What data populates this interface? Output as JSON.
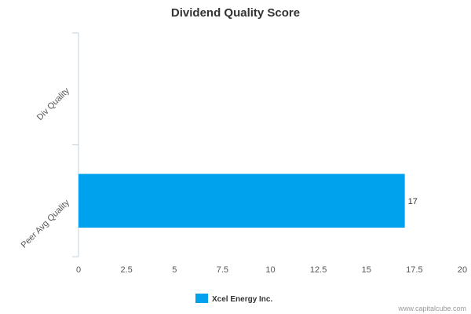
{
  "chart_data": {
    "type": "bar",
    "orientation": "horizontal",
    "title": "Dividend Quality Score",
    "categories": [
      "Div Quality",
      "Peer Avg Quality"
    ],
    "series": [
      {
        "name": "Xcel Energy Inc.",
        "values": [
          null,
          17
        ],
        "color": "#00a2ed"
      }
    ],
    "data_labels": [
      "",
      "17"
    ],
    "xlim": [
      0,
      20
    ],
    "x_ticks": [
      0,
      2.5,
      5,
      7.5,
      10,
      12.5,
      15,
      17.5,
      20
    ],
    "x_tick_labels": [
      "0",
      "2.5",
      "5",
      "7.5",
      "10",
      "12.5",
      "15",
      "17.5",
      "20"
    ],
    "grid": false,
    "legend_position": "bottom-center"
  },
  "credit": "www.capitalcube.com",
  "colors": {
    "axis": "#c0d0e0",
    "bar": "#00a2ed"
  }
}
